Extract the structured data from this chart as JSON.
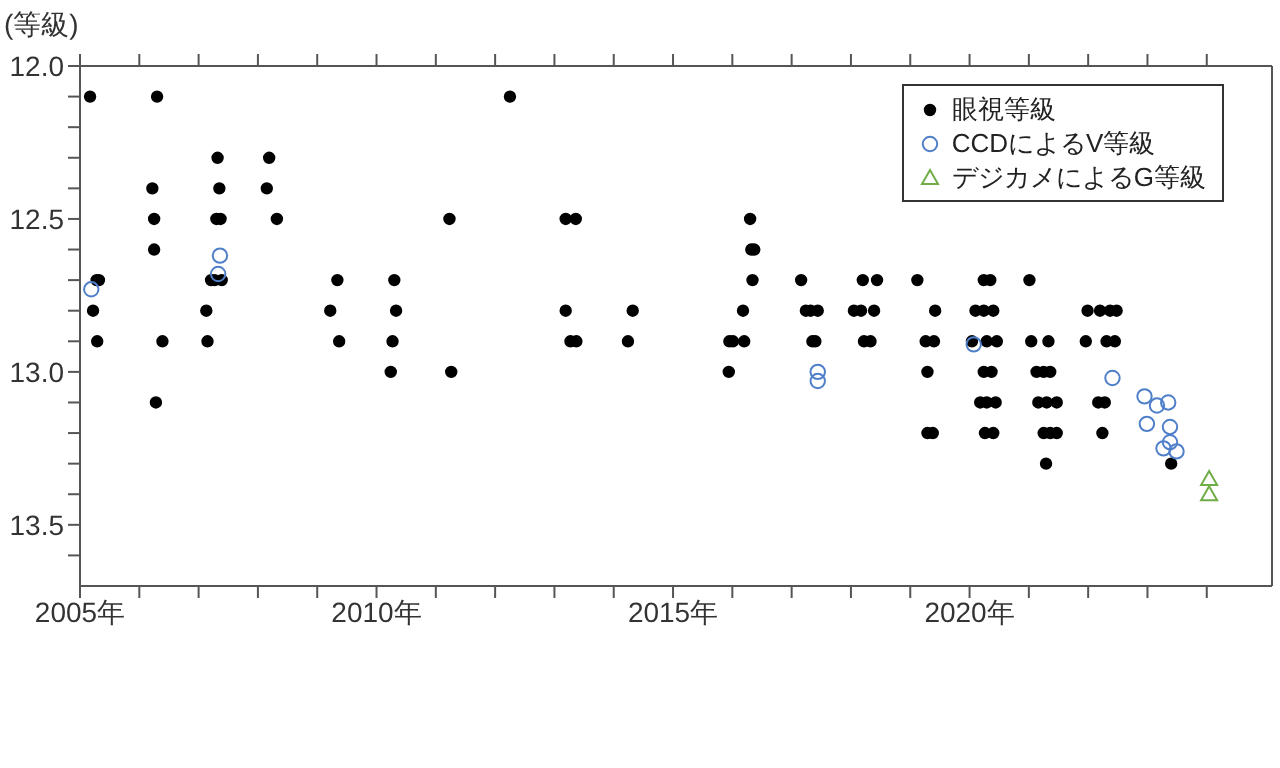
{
  "chart_data": {
    "type": "scatter",
    "ylabel": "(等級)",
    "xlim": [
      2005,
      2025.1
    ],
    "ylim": [
      13.7,
      12.0
    ],
    "xticks": [
      {
        "value": 2005,
        "label": "2005年"
      },
      {
        "value": 2006,
        "label": null
      },
      {
        "value": 2007,
        "label": null
      },
      {
        "value": 2008,
        "label": null
      },
      {
        "value": 2009,
        "label": null
      },
      {
        "value": 2010,
        "label": "2010年"
      },
      {
        "value": 2011,
        "label": null
      },
      {
        "value": 2012,
        "label": null
      },
      {
        "value": 2013,
        "label": null
      },
      {
        "value": 2014,
        "label": null
      },
      {
        "value": 2015,
        "label": "2015年"
      },
      {
        "value": 2016,
        "label": null
      },
      {
        "value": 2017,
        "label": null
      },
      {
        "value": 2018,
        "label": null
      },
      {
        "value": 2019,
        "label": null
      },
      {
        "value": 2020,
        "label": "2020年"
      },
      {
        "value": 2021,
        "label": null
      },
      {
        "value": 2022,
        "label": null
      },
      {
        "value": 2023,
        "label": null
      },
      {
        "value": 2024,
        "label": null
      }
    ],
    "yticks": [
      {
        "value": 12.0,
        "label": "12.0"
      },
      {
        "value": 12.1,
        "label": null
      },
      {
        "value": 12.2,
        "label": null
      },
      {
        "value": 12.3,
        "label": null
      },
      {
        "value": 12.4,
        "label": null
      },
      {
        "value": 12.5,
        "label": "12.5"
      },
      {
        "value": 12.6,
        "label": null
      },
      {
        "value": 12.7,
        "label": null
      },
      {
        "value": 12.8,
        "label": null
      },
      {
        "value": 12.9,
        "label": null
      },
      {
        "value": 13.0,
        "label": "13.0"
      },
      {
        "value": 13.1,
        "label": null
      },
      {
        "value": 13.2,
        "label": null
      },
      {
        "value": 13.3,
        "label": null
      },
      {
        "value": 13.4,
        "label": null
      },
      {
        "value": 13.5,
        "label": "13.5"
      },
      {
        "value": 13.6,
        "label": null
      }
    ],
    "grid": false,
    "legend": "top right",
    "series": [
      {
        "name": "眼視等級",
        "color": "#000000",
        "marker": "circle",
        "x": [
          2005.17,
          2005.28,
          2005.32,
          2005.22,
          2005.29,
          2006.3,
          2006.22,
          2006.25,
          2006.25,
          2006.28,
          2006.39,
          2007.32,
          2007.35,
          2007.3,
          2007.37,
          2007.21,
          2007.27,
          2007.39,
          2007.13,
          2007.15,
          2008.19,
          2008.15,
          2008.32,
          2009.34,
          2009.22,
          2009.37,
          2010.3,
          2010.33,
          2010.27,
          2010.24,
          2011.23,
          2011.26,
          2012.25,
          2013.19,
          2013.36,
          2013.19,
          2013.27,
          2013.37,
          2014.32,
          2014.24,
          2015.94,
          2015.95,
          2016.01,
          2016.2,
          2016.18,
          2016.3,
          2016.32,
          2016.37,
          2016.34,
          2017.16,
          2017.24,
          2017.32,
          2017.44,
          2017.35,
          2017.4,
          2018.2,
          2018.44,
          2019.12,
          2020.24,
          2020.35,
          2021.01,
          2018.05,
          2018.17,
          2018.39,
          2019.42,
          2020.1,
          2020.24,
          2020.4,
          2021.99,
          2022.2,
          2022.37,
          2022.48,
          2018.22,
          2018.33,
          2019.26,
          2019.4,
          2020.04,
          2020.29,
          2020.46,
          2021.04,
          2021.33,
          2021.96,
          2022.31,
          2022.45,
          2019.29,
          2020.24,
          2020.37,
          2021.13,
          2021.25,
          2021.36,
          2020.18,
          2020.29,
          2020.44,
          2021.16,
          2021.3,
          2021.47,
          2022.17,
          2022.28,
          2019.29,
          2019.38,
          2020.26,
          2020.4,
          2021.25,
          2021.36,
          2021.47,
          2022.24,
          2021.29,
          2023.4
        ],
        "values": [
          12.1,
          12.7,
          12.7,
          12.8,
          12.9,
          12.1,
          12.4,
          12.5,
          12.6,
          13.1,
          12.9,
          12.3,
          12.4,
          12.5,
          12.5,
          12.7,
          12.7,
          12.7,
          12.8,
          12.9,
          12.3,
          12.4,
          12.5,
          12.7,
          12.8,
          12.9,
          12.7,
          12.8,
          12.9,
          13.0,
          12.5,
          13.0,
          12.1,
          12.5,
          12.5,
          12.8,
          12.9,
          12.9,
          12.8,
          12.9,
          13.0,
          12.9,
          12.9,
          12.9,
          12.8,
          12.5,
          12.6,
          12.6,
          12.7,
          12.7,
          12.8,
          12.8,
          12.8,
          12.9,
          12.9,
          12.7,
          12.7,
          12.7,
          12.7,
          12.7,
          12.7,
          12.8,
          12.8,
          12.8,
          12.8,
          12.8,
          12.8,
          12.8,
          12.8,
          12.8,
          12.8,
          12.8,
          12.9,
          12.9,
          12.9,
          12.9,
          12.9,
          12.9,
          12.9,
          12.9,
          12.9,
          12.9,
          12.9,
          12.9,
          13.0,
          13.0,
          13.0,
          13.0,
          13.0,
          13.0,
          13.1,
          13.1,
          13.1,
          13.1,
          13.1,
          13.1,
          13.1,
          13.1,
          13.2,
          13.2,
          13.2,
          13.2,
          13.2,
          13.2,
          13.2,
          13.2,
          13.3,
          13.3
        ]
      },
      {
        "name": "CCDによるV等級",
        "color": "#4f7fc9",
        "marker": "circle",
        "x": [
          2005.19,
          2007.36,
          2007.33,
          2017.44,
          2017.44,
          2020.07,
          2022.41,
          2022.95,
          2023.16,
          2023.35,
          2022.99,
          2023.38,
          2023.38,
          2023.27,
          2023.49
        ],
        "values": [
          12.73,
          12.62,
          12.68,
          13.0,
          13.03,
          12.91,
          13.02,
          13.08,
          13.11,
          13.1,
          13.17,
          13.18,
          13.23,
          13.25,
          13.26
        ]
      },
      {
        "name": "デジカメによるG等級",
        "color": "#70ad47",
        "marker": "triangle",
        "x": [
          2024.04,
          2024.04
        ],
        "values": [
          13.35,
          13.4
        ]
      }
    ]
  }
}
